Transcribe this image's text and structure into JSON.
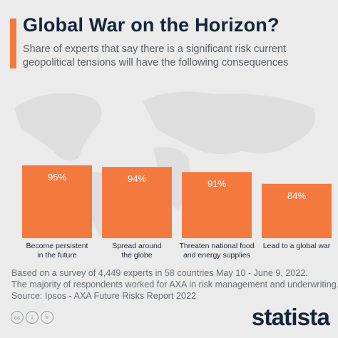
{
  "header": {
    "title": "Global War on the Horizon?",
    "subtitle": "Share of experts that say there is a significant risk current geopolitical tensions will have the following consequences"
  },
  "chart_data": {
    "type": "bar",
    "categories": [
      [
        "Become persistent",
        "in the future"
      ],
      [
        "Spread around",
        "the globe"
      ],
      [
        "Threaten national food",
        "and energy supplies"
      ],
      [
        "Lead to a global war"
      ]
    ],
    "values": [
      95,
      94,
      91,
      84
    ],
    "value_labels": [
      "95%",
      "94%",
      "91%",
      "84%"
    ],
    "ylim": [
      0,
      100
    ],
    "bar_color": "#f4793f",
    "grid": false,
    "legend": false
  },
  "footer": {
    "notes": [
      "Based on a survey of 4,449 experts in 58 countries May 10 - June 9, 2022.",
      "The majority of respondents worked for AXA in risk management and underwriting.",
      "Source: Ipsos - AXA Future Risks Report 2022"
    ],
    "license_icons": [
      "cc",
      "i",
      "="
    ],
    "brand": "statista"
  },
  "colors": {
    "accent": "#f4793f",
    "title": "#15263a",
    "background": "#ebebeb",
    "map": "#dedede"
  }
}
